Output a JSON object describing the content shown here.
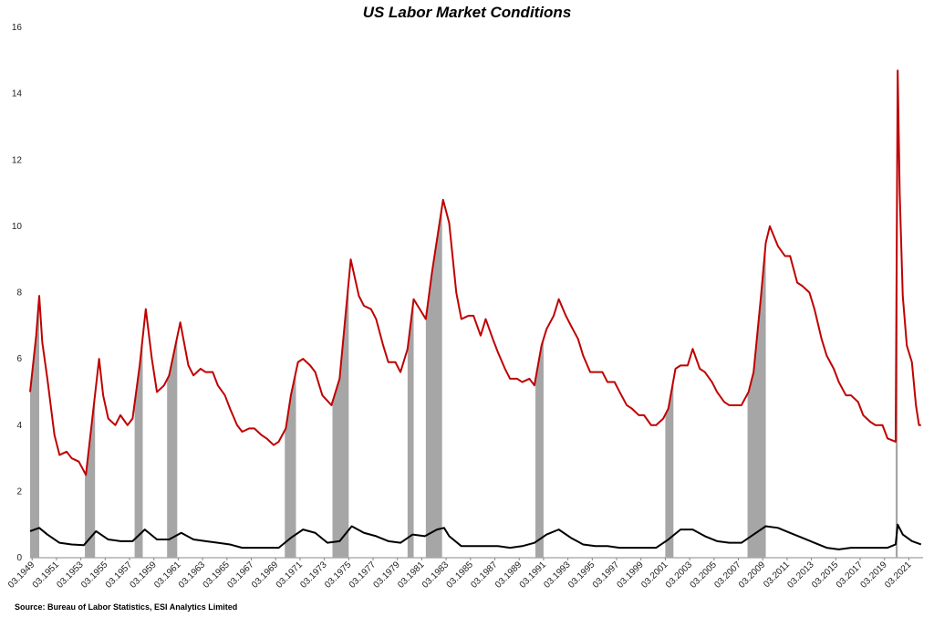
{
  "chart_data": {
    "type": "line",
    "title": "US Labor Market Conditions",
    "source": "Source: Bureau of Labor Statistics, ESI Analytics Limited",
    "xlim": [
      "1949-01",
      "2022-05"
    ],
    "ylim": [
      0,
      16
    ],
    "yticks": [
      0,
      2,
      4,
      6,
      8,
      10,
      12,
      14,
      16
    ],
    "xticks": [
      {
        "value": "1949-03",
        "label": "03.1949"
      },
      {
        "value": "1951-03",
        "label": "03.1951"
      },
      {
        "value": "1953-03",
        "label": "03.1953"
      },
      {
        "value": "1955-03",
        "label": "03.1955"
      },
      {
        "value": "1957-03",
        "label": "03.1957"
      },
      {
        "value": "1959-03",
        "label": "03.1959"
      },
      {
        "value": "1961-03",
        "label": "03.1961"
      },
      {
        "value": "1963-03",
        "label": "03.1963"
      },
      {
        "value": "1965-03",
        "label": "03.1965"
      },
      {
        "value": "1967-03",
        "label": "03.1967"
      },
      {
        "value": "1969-03",
        "label": "03.1969"
      },
      {
        "value": "1971-03",
        "label": "03.1971"
      },
      {
        "value": "1973-03",
        "label": "03.1973"
      },
      {
        "value": "1975-03",
        "label": "03.1975"
      },
      {
        "value": "1977-03",
        "label": "03.1977"
      },
      {
        "value": "1979-03",
        "label": "03.1979"
      },
      {
        "value": "1981-03",
        "label": "03.1981"
      },
      {
        "value": "1983-03",
        "label": "03.1983"
      },
      {
        "value": "1985-03",
        "label": "03.1985"
      },
      {
        "value": "1987-03",
        "label": "03.1987"
      },
      {
        "value": "1989-03",
        "label": "03.1989"
      },
      {
        "value": "1991-03",
        "label": "03.1991"
      },
      {
        "value": "1993-03",
        "label": "03.1993"
      },
      {
        "value": "1995-03",
        "label": "03.1995"
      },
      {
        "value": "1997-03",
        "label": "03.1997"
      },
      {
        "value": "1999-03",
        "label": "03.1999"
      },
      {
        "value": "2001-03",
        "label": "03.2001"
      },
      {
        "value": "2003-03",
        "label": "03.2003"
      },
      {
        "value": "2005-03",
        "label": "03.2005"
      },
      {
        "value": "2007-03",
        "label": "03.2007"
      },
      {
        "value": "2009-03",
        "label": "03.2009"
      },
      {
        "value": "2011-03",
        "label": "03.2011"
      },
      {
        "value": "2013-03",
        "label": "03.2013"
      },
      {
        "value": "2015-03",
        "label": "03.2015"
      },
      {
        "value": "2017-03",
        "label": "03.2017"
      },
      {
        "value": "2019-03",
        "label": "03.2019"
      },
      {
        "value": "2021-03",
        "label": "03.2021"
      }
    ],
    "recession_color": "#a6a6a6",
    "recessions": [
      [
        "1949-01",
        "1949-10"
      ],
      [
        "1953-07",
        "1954-05"
      ],
      [
        "1957-08",
        "1958-04"
      ],
      [
        "1960-04",
        "1961-02"
      ],
      [
        "1969-12",
        "1970-11"
      ],
      [
        "1973-11",
        "1975-03"
      ],
      [
        "1980-01",
        "1980-07"
      ],
      [
        "1981-07",
        "1982-11"
      ],
      [
        "1990-07",
        "1991-03"
      ],
      [
        "2001-03",
        "2001-11"
      ],
      [
        "2007-12",
        "2009-06"
      ],
      [
        "2020-02",
        "2020-04"
      ]
    ],
    "series": [
      {
        "color": "#c00000",
        "x": [
          "1949-01",
          "1949-07",
          "1949-10",
          "1950-01",
          "1950-06",
          "1951-01",
          "1951-06",
          "1952-01",
          "1952-06",
          "1953-01",
          "1953-08",
          "1954-09",
          "1955-01",
          "1955-06",
          "1956-01",
          "1956-06",
          "1957-01",
          "1957-06",
          "1958-01",
          "1958-07",
          "1959-01",
          "1959-06",
          "1960-01",
          "1960-06",
          "1961-05",
          "1962-01",
          "1962-06",
          "1963-01",
          "1963-06",
          "1964-01",
          "1964-06",
          "1965-01",
          "1965-06",
          "1966-01",
          "1966-06",
          "1967-01",
          "1967-06",
          "1968-01",
          "1968-06",
          "1969-01",
          "1969-06",
          "1970-01",
          "1970-06",
          "1971-01",
          "1971-06",
          "1972-01",
          "1972-06",
          "1973-01",
          "1973-10",
          "1974-06",
          "1975-05",
          "1976-01",
          "1976-06",
          "1977-01",
          "1977-06",
          "1978-01",
          "1978-06",
          "1979-01",
          "1979-06",
          "1980-01",
          "1980-07",
          "1981-01",
          "1981-07",
          "1982-01",
          "1982-06",
          "1982-12",
          "1983-06",
          "1984-01",
          "1984-06",
          "1985-01",
          "1985-06",
          "1986-01",
          "1986-06",
          "1987-01",
          "1987-06",
          "1988-01",
          "1988-06",
          "1989-01",
          "1989-06",
          "1990-01",
          "1990-06",
          "1991-01",
          "1991-06",
          "1992-01",
          "1992-06",
          "1993-01",
          "1993-06",
          "1994-01",
          "1994-06",
          "1995-01",
          "1995-06",
          "1996-01",
          "1996-06",
          "1997-01",
          "1997-06",
          "1998-01",
          "1998-06",
          "1999-01",
          "1999-06",
          "2000-01",
          "2000-06",
          "2001-01",
          "2001-06",
          "2002-01",
          "2002-06",
          "2003-01",
          "2003-06",
          "2004-01",
          "2004-06",
          "2005-01",
          "2005-06",
          "2006-01",
          "2006-06",
          "2007-01",
          "2007-06",
          "2008-01",
          "2008-06",
          "2009-01",
          "2009-06",
          "2009-10",
          "2010-06",
          "2011-01",
          "2011-06",
          "2012-01",
          "2012-06",
          "2013-01",
          "2013-06",
          "2014-01",
          "2014-06",
          "2015-01",
          "2015-06",
          "2016-01",
          "2016-06",
          "2017-01",
          "2017-06",
          "2018-01",
          "2018-06",
          "2019-01",
          "2019-06",
          "2020-02",
          "2020-04",
          "2020-06",
          "2020-09",
          "2021-01",
          "2021-06",
          "2021-10",
          "2022-01",
          "2022-03"
        ],
        "values": [
          5.0,
          6.7,
          7.9,
          6.5,
          5.4,
          3.7,
          3.1,
          3.2,
          3.0,
          2.9,
          2.5,
          6.0,
          4.9,
          4.2,
          4.0,
          4.3,
          4.0,
          4.2,
          5.8,
          7.5,
          6.0,
          5.0,
          5.2,
          5.5,
          7.1,
          5.8,
          5.5,
          5.7,
          5.6,
          5.6,
          5.2,
          4.9,
          4.5,
          4.0,
          3.8,
          3.9,
          3.9,
          3.7,
          3.6,
          3.4,
          3.5,
          3.9,
          4.9,
          5.9,
          6.0,
          5.8,
          5.6,
          4.9,
          4.6,
          5.4,
          9.0,
          7.9,
          7.6,
          7.5,
          7.2,
          6.4,
          5.9,
          5.9,
          5.6,
          6.3,
          7.8,
          7.5,
          7.2,
          8.6,
          9.6,
          10.8,
          10.1,
          8.0,
          7.2,
          7.3,
          7.3,
          6.7,
          7.2,
          6.6,
          6.2,
          5.7,
          5.4,
          5.4,
          5.3,
          5.4,
          5.2,
          6.4,
          6.9,
          7.3,
          7.8,
          7.3,
          7.0,
          6.6,
          6.1,
          5.6,
          5.6,
          5.6,
          5.3,
          5.3,
          5.0,
          4.6,
          4.5,
          4.3,
          4.3,
          4.0,
          4.0,
          4.2,
          4.5,
          5.7,
          5.8,
          5.8,
          6.3,
          5.7,
          5.6,
          5.3,
          5.0,
          4.7,
          4.6,
          4.6,
          4.6,
          5.0,
          5.6,
          7.8,
          9.5,
          10.0,
          9.4,
          9.1,
          9.1,
          8.3,
          8.2,
          8.0,
          7.5,
          6.6,
          6.1,
          5.7,
          5.3,
          4.9,
          4.9,
          4.7,
          4.3,
          4.1,
          4.0,
          4.0,
          3.6,
          3.5,
          14.7,
          11.0,
          7.9,
          6.4,
          5.9,
          4.6,
          4.0,
          4.0
        ]
      },
      {
        "color": "#000000",
        "x": [
          "1949-01",
          "1949-10",
          "1950-06",
          "1951-06",
          "1952-06",
          "1953-06",
          "1954-06",
          "1955-06",
          "1956-06",
          "1957-06",
          "1958-06",
          "1959-06",
          "1960-06",
          "1961-06",
          "1962-06",
          "1963-06",
          "1964-06",
          "1965-06",
          "1966-06",
          "1967-06",
          "1968-06",
          "1969-06",
          "1970-06",
          "1971-06",
          "1972-06",
          "1973-06",
          "1974-06",
          "1975-06",
          "1976-06",
          "1977-06",
          "1978-06",
          "1979-06",
          "1980-06",
          "1981-06",
          "1982-06",
          "1983-01",
          "1983-06",
          "1984-06",
          "1985-06",
          "1986-06",
          "1987-06",
          "1988-06",
          "1989-06",
          "1990-06",
          "1991-06",
          "1992-06",
          "1993-06",
          "1994-06",
          "1995-06",
          "1996-06",
          "1997-06",
          "1998-06",
          "1999-06",
          "2000-06",
          "2001-06",
          "2002-06",
          "2003-06",
          "2004-06",
          "2005-06",
          "2006-06",
          "2007-06",
          "2008-06",
          "2009-06",
          "2010-06",
          "2011-06",
          "2012-06",
          "2013-06",
          "2014-06",
          "2015-06",
          "2016-06",
          "2017-06",
          "2018-06",
          "2019-06",
          "2020-02",
          "2020-04",
          "2020-09",
          "2021-06",
          "2022-03"
        ],
        "values": [
          0.8,
          0.9,
          0.7,
          0.45,
          0.4,
          0.38,
          0.8,
          0.55,
          0.5,
          0.5,
          0.85,
          0.55,
          0.55,
          0.75,
          0.55,
          0.5,
          0.45,
          0.4,
          0.3,
          0.3,
          0.3,
          0.3,
          0.6,
          0.85,
          0.75,
          0.45,
          0.5,
          0.95,
          0.75,
          0.65,
          0.5,
          0.45,
          0.7,
          0.65,
          0.85,
          0.9,
          0.65,
          0.35,
          0.35,
          0.35,
          0.35,
          0.3,
          0.35,
          0.45,
          0.7,
          0.85,
          0.6,
          0.4,
          0.35,
          0.35,
          0.3,
          0.3,
          0.3,
          0.3,
          0.55,
          0.85,
          0.85,
          0.65,
          0.5,
          0.45,
          0.45,
          0.7,
          0.95,
          0.9,
          0.75,
          0.6,
          0.45,
          0.3,
          0.25,
          0.3,
          0.3,
          0.3,
          0.3,
          0.4,
          1.0,
          0.7,
          0.5,
          0.4
        ]
      }
    ]
  }
}
